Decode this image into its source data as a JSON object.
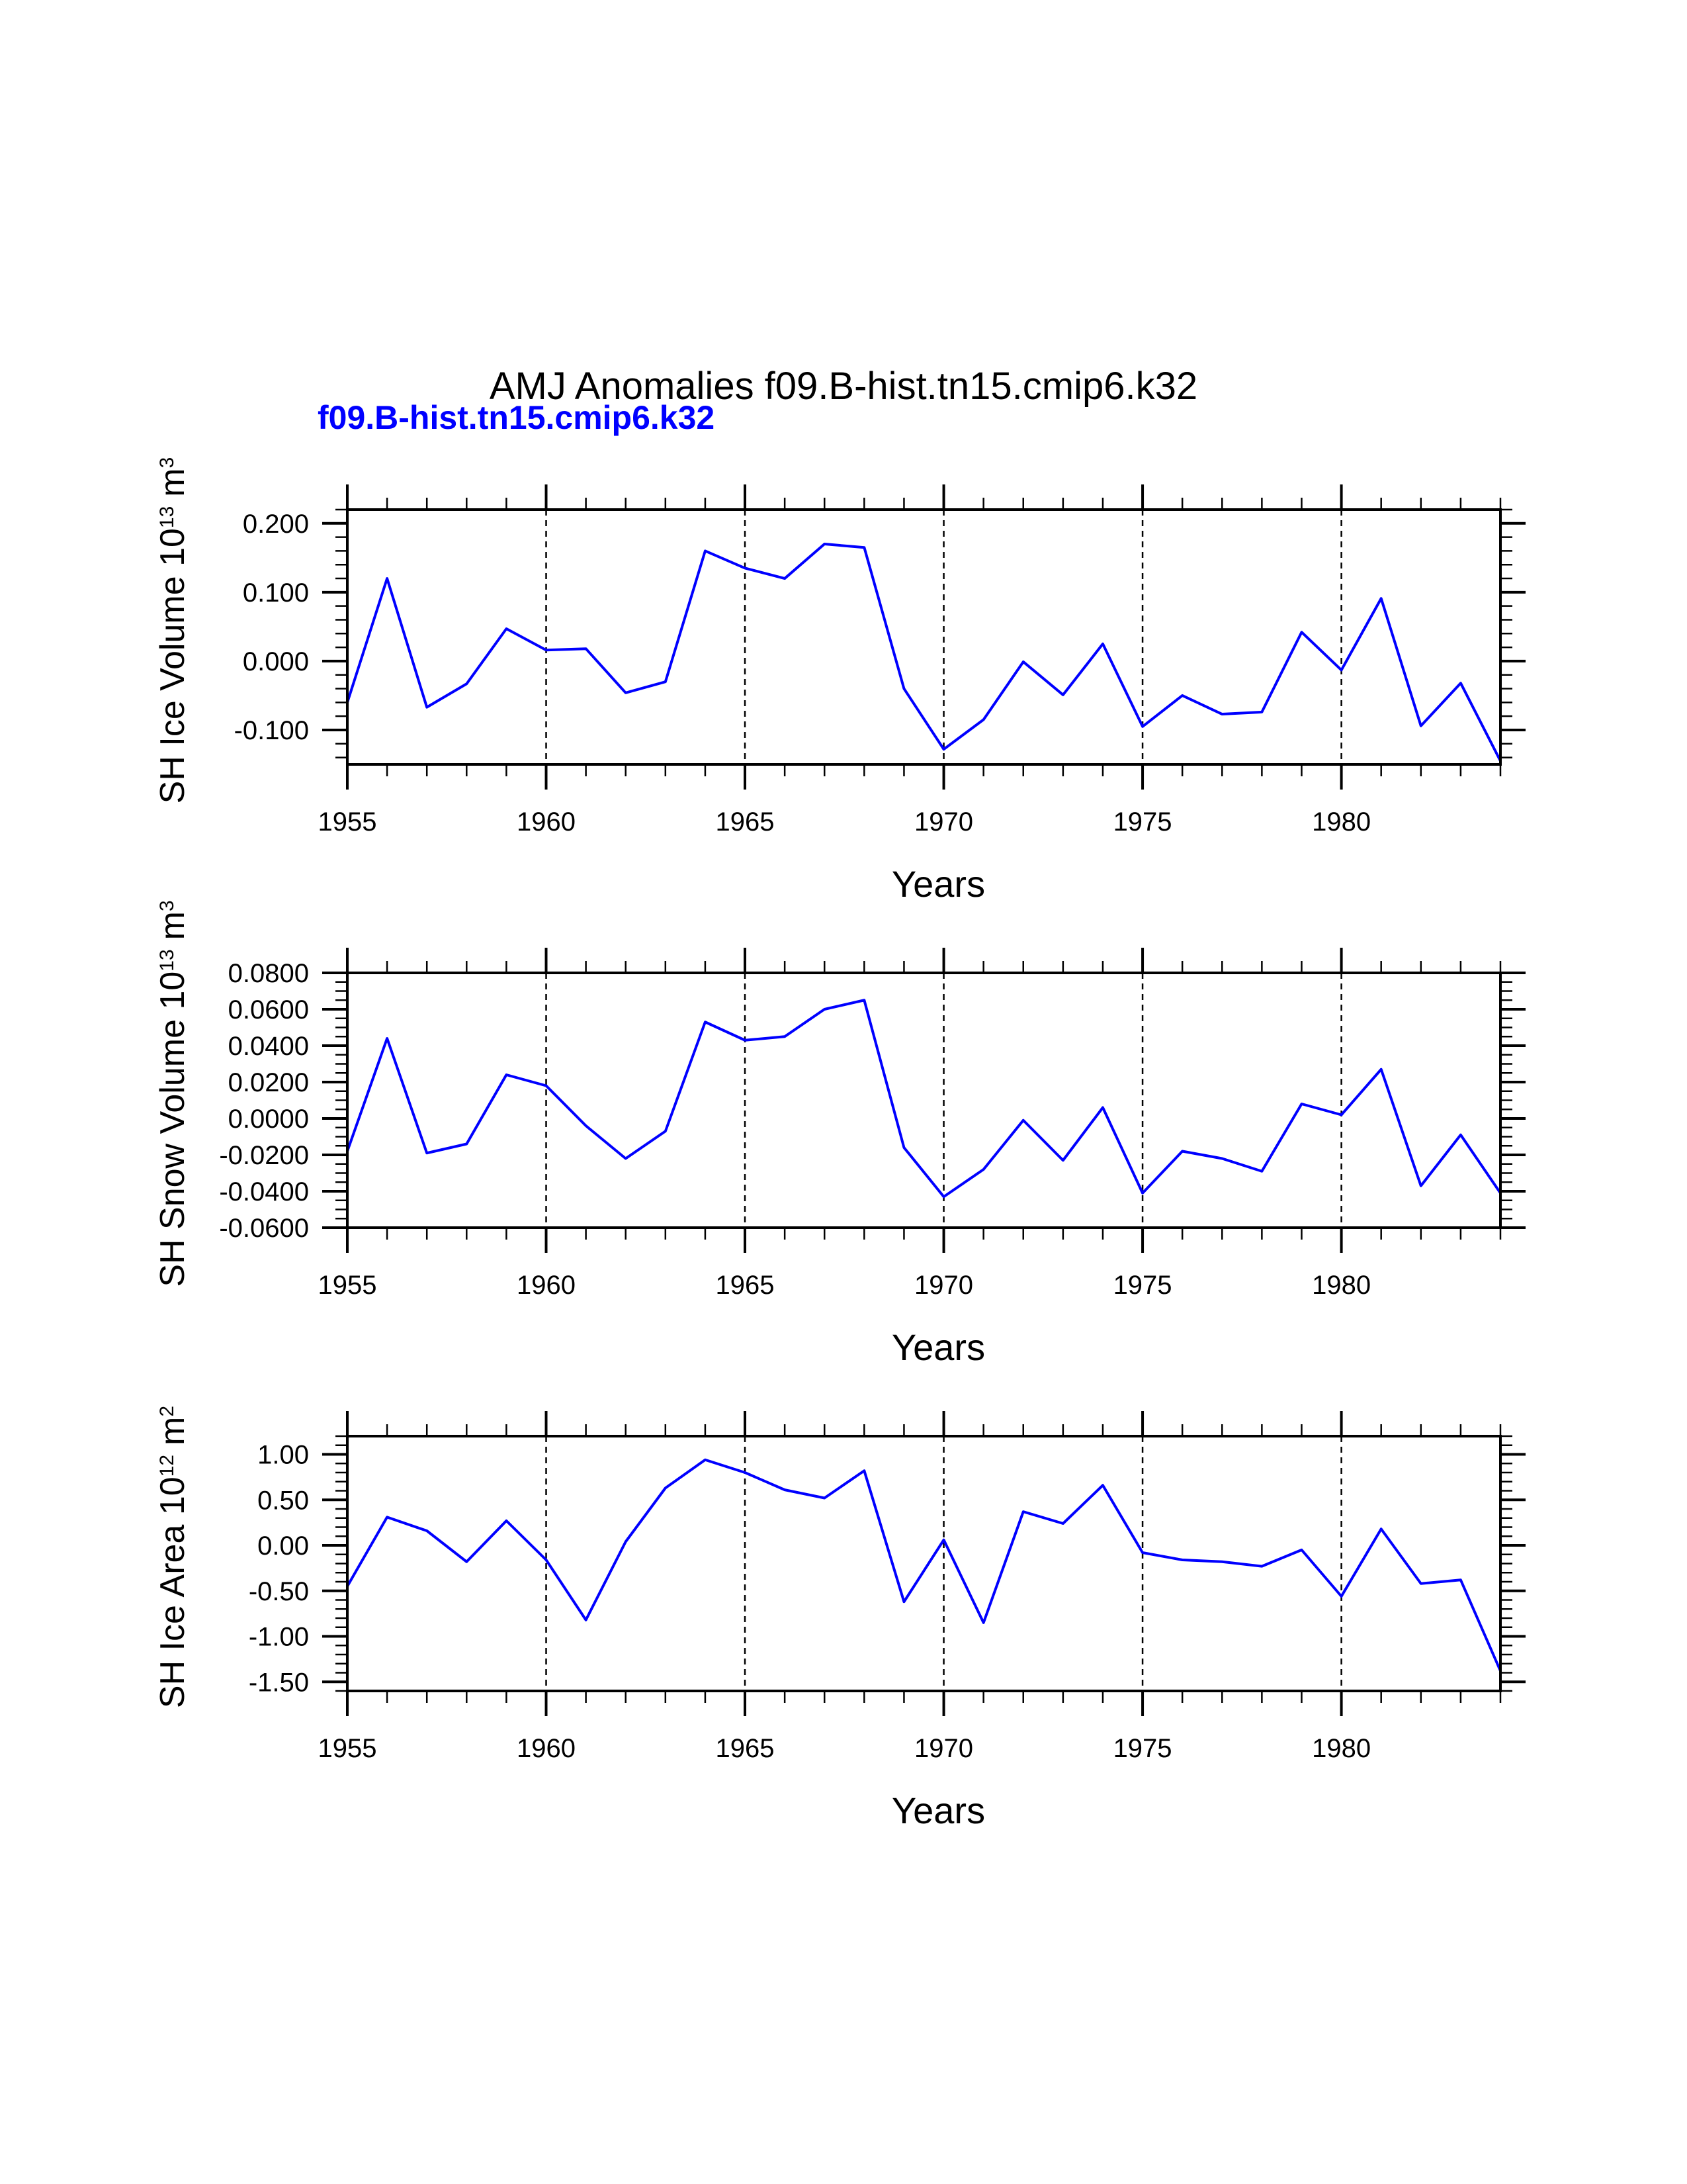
{
  "title": "AMJ Anomalies f09.B-hist.tn15.cmip6.k32",
  "subtitle": "f09.B-hist.tn15.cmip6.k32",
  "line_color": "#0000ff",
  "chart_data": [
    {
      "type": "line",
      "ylabel_main": "SH Ice Volume 10",
      "ylabel_exp": "13",
      "ylabel_unit": "m",
      "ylabel_unit_exp": "3",
      "xlabel": "Years",
      "xlim": [
        1955,
        1984
      ],
      "ylim": [
        -0.15,
        0.22
      ],
      "x_ticks": [
        "1955",
        "1960",
        "1965",
        "1970",
        "1975",
        "1980"
      ],
      "y_ticks": [
        0.2,
        0.1,
        0.0,
        -0.1
      ],
      "y_tick_labels": [
        "0.200",
        "0.100",
        "0.000",
        "-0.100"
      ],
      "y_minor_step": 0.02,
      "grid_x": [
        1960,
        1965,
        1970,
        1975,
        1980
      ],
      "x": [
        1955,
        1956,
        1957,
        1958,
        1959,
        1960,
        1961,
        1962,
        1963,
        1964,
        1965,
        1966,
        1967,
        1968,
        1969,
        1970,
        1971,
        1972,
        1973,
        1974,
        1975,
        1976,
        1977,
        1978,
        1979,
        1980,
        1981,
        1982,
        1983,
        1984
      ],
      "values": [
        -0.06,
        0.12,
        -0.067,
        -0.033,
        0.047,
        0.016,
        0.018,
        -0.046,
        -0.03,
        0.16,
        0.135,
        0.12,
        0.17,
        0.165,
        -0.04,
        -0.128,
        -0.085,
        -0.001,
        -0.049,
        0.025,
        -0.095,
        -0.05,
        -0.077,
        -0.074,
        0.042,
        -0.013,
        0.091,
        -0.094,
        -0.032,
        -0.145
      ]
    },
    {
      "type": "line",
      "ylabel_main": "SH Snow Volume 10",
      "ylabel_exp": "13",
      "ylabel_unit": "m",
      "ylabel_unit_exp": "3",
      "xlabel": "Years",
      "xlim": [
        1955,
        1984
      ],
      "ylim": [
        -0.06,
        0.08
      ],
      "x_ticks": [
        "1955",
        "1960",
        "1965",
        "1970",
        "1975",
        "1980"
      ],
      "y_ticks": [
        0.08,
        0.06,
        0.04,
        0.02,
        0.0,
        -0.02,
        -0.04,
        -0.06
      ],
      "y_tick_labels": [
        "0.0800",
        "0.0600",
        "0.0400",
        "0.0200",
        "0.0000",
        "-0.0200",
        "-0.0400",
        "-0.0600"
      ],
      "y_minor_step": 0.005,
      "grid_x": [
        1960,
        1965,
        1970,
        1975,
        1980
      ],
      "x": [
        1955,
        1956,
        1957,
        1958,
        1959,
        1960,
        1961,
        1962,
        1963,
        1964,
        1965,
        1966,
        1967,
        1968,
        1969,
        1970,
        1971,
        1972,
        1973,
        1974,
        1975,
        1976,
        1977,
        1978,
        1979,
        1980,
        1981,
        1982,
        1983,
        1984
      ],
      "values": [
        -0.018,
        0.044,
        -0.019,
        -0.014,
        0.024,
        0.018,
        -0.004,
        -0.022,
        -0.007,
        0.053,
        0.043,
        0.045,
        0.06,
        0.065,
        -0.016,
        -0.043,
        -0.028,
        -0.001,
        -0.023,
        0.006,
        -0.041,
        -0.018,
        -0.022,
        -0.029,
        0.008,
        0.002,
        0.027,
        -0.037,
        -0.009,
        -0.041
      ]
    },
    {
      "type": "line",
      "ylabel_main": "SH Ice Area 10",
      "ylabel_exp": "12",
      "ylabel_unit": "m",
      "ylabel_unit_exp": "2",
      "xlabel": "Years",
      "xlim": [
        1955,
        1984
      ],
      "ylim": [
        -1.6,
        1.2
      ],
      "x_ticks": [
        "1955",
        "1960",
        "1965",
        "1970",
        "1975",
        "1980"
      ],
      "y_ticks": [
        1.0,
        0.5,
        0.0,
        -0.5,
        -1.0,
        -1.5
      ],
      "y_tick_labels": [
        "1.00",
        "0.50",
        "0.00",
        "-0.50",
        "-1.00",
        "-1.50"
      ],
      "y_minor_step": 0.1,
      "grid_x": [
        1960,
        1965,
        1970,
        1975,
        1980
      ],
      "x": [
        1955,
        1956,
        1957,
        1958,
        1959,
        1960,
        1961,
        1962,
        1963,
        1964,
        1965,
        1966,
        1967,
        1968,
        1969,
        1970,
        1971,
        1972,
        1973,
        1974,
        1975,
        1976,
        1977,
        1978,
        1979,
        1980,
        1981,
        1982,
        1983,
        1984
      ],
      "values": [
        -0.45,
        0.31,
        0.16,
        -0.18,
        0.27,
        -0.16,
        -0.82,
        0.04,
        0.63,
        0.94,
        0.8,
        0.61,
        0.52,
        0.82,
        -0.62,
        0.06,
        -0.85,
        0.37,
        0.24,
        0.66,
        -0.08,
        -0.16,
        -0.18,
        -0.23,
        -0.05,
        -0.56,
        0.18,
        -0.42,
        -0.38,
        -1.38
      ]
    }
  ]
}
